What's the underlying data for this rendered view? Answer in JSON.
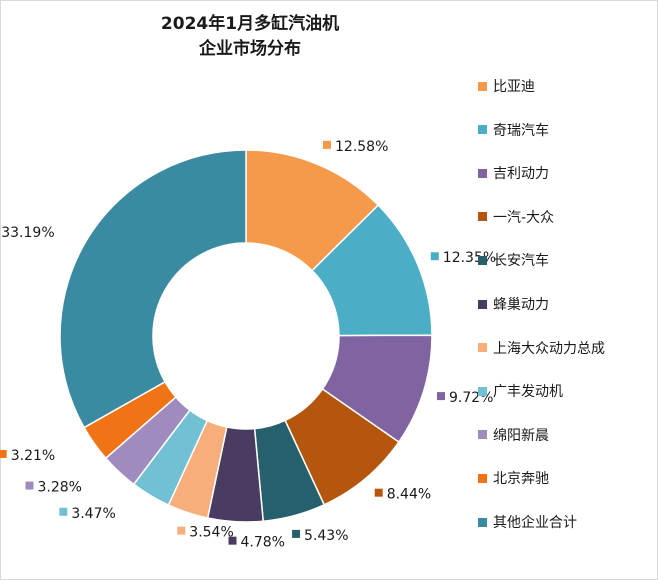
{
  "chart_data": {
    "type": "pie",
    "variant": "donut",
    "title_lines": [
      "2024年1月多缸汽油机",
      "企业市场分布"
    ],
    "legend_placement": "right",
    "categories": [
      "比亚迪",
      "奇瑞汽车",
      "吉利动力",
      "一汽-大众",
      "长安汽车",
      "蜂巢动力",
      "上海大众动力总成",
      "广丰发动机",
      "绵阳新晨",
      "北京奔驰",
      "其他企业合计"
    ],
    "values": [
      12.58,
      12.35,
      9.72,
      8.44,
      5.43,
      4.78,
      3.54,
      3.47,
      3.28,
      3.21,
      33.19
    ],
    "labels": [
      "12.58%",
      "12.35%",
      "9.72%",
      "8.44%",
      "5.43%",
      "4.78%",
      "3.54%",
      "3.47%",
      "3.28%",
      "3.21%",
      "33.19%"
    ],
    "colors": [
      "#F59A4A",
      "#4BADC6",
      "#8064A2",
      "#B5560F",
      "#27606D",
      "#4A3B60",
      "#F7AE7A",
      "#72C0D3",
      "#A08BBE",
      "#F07416",
      "#3A8BA1"
    ],
    "unit": "%"
  }
}
